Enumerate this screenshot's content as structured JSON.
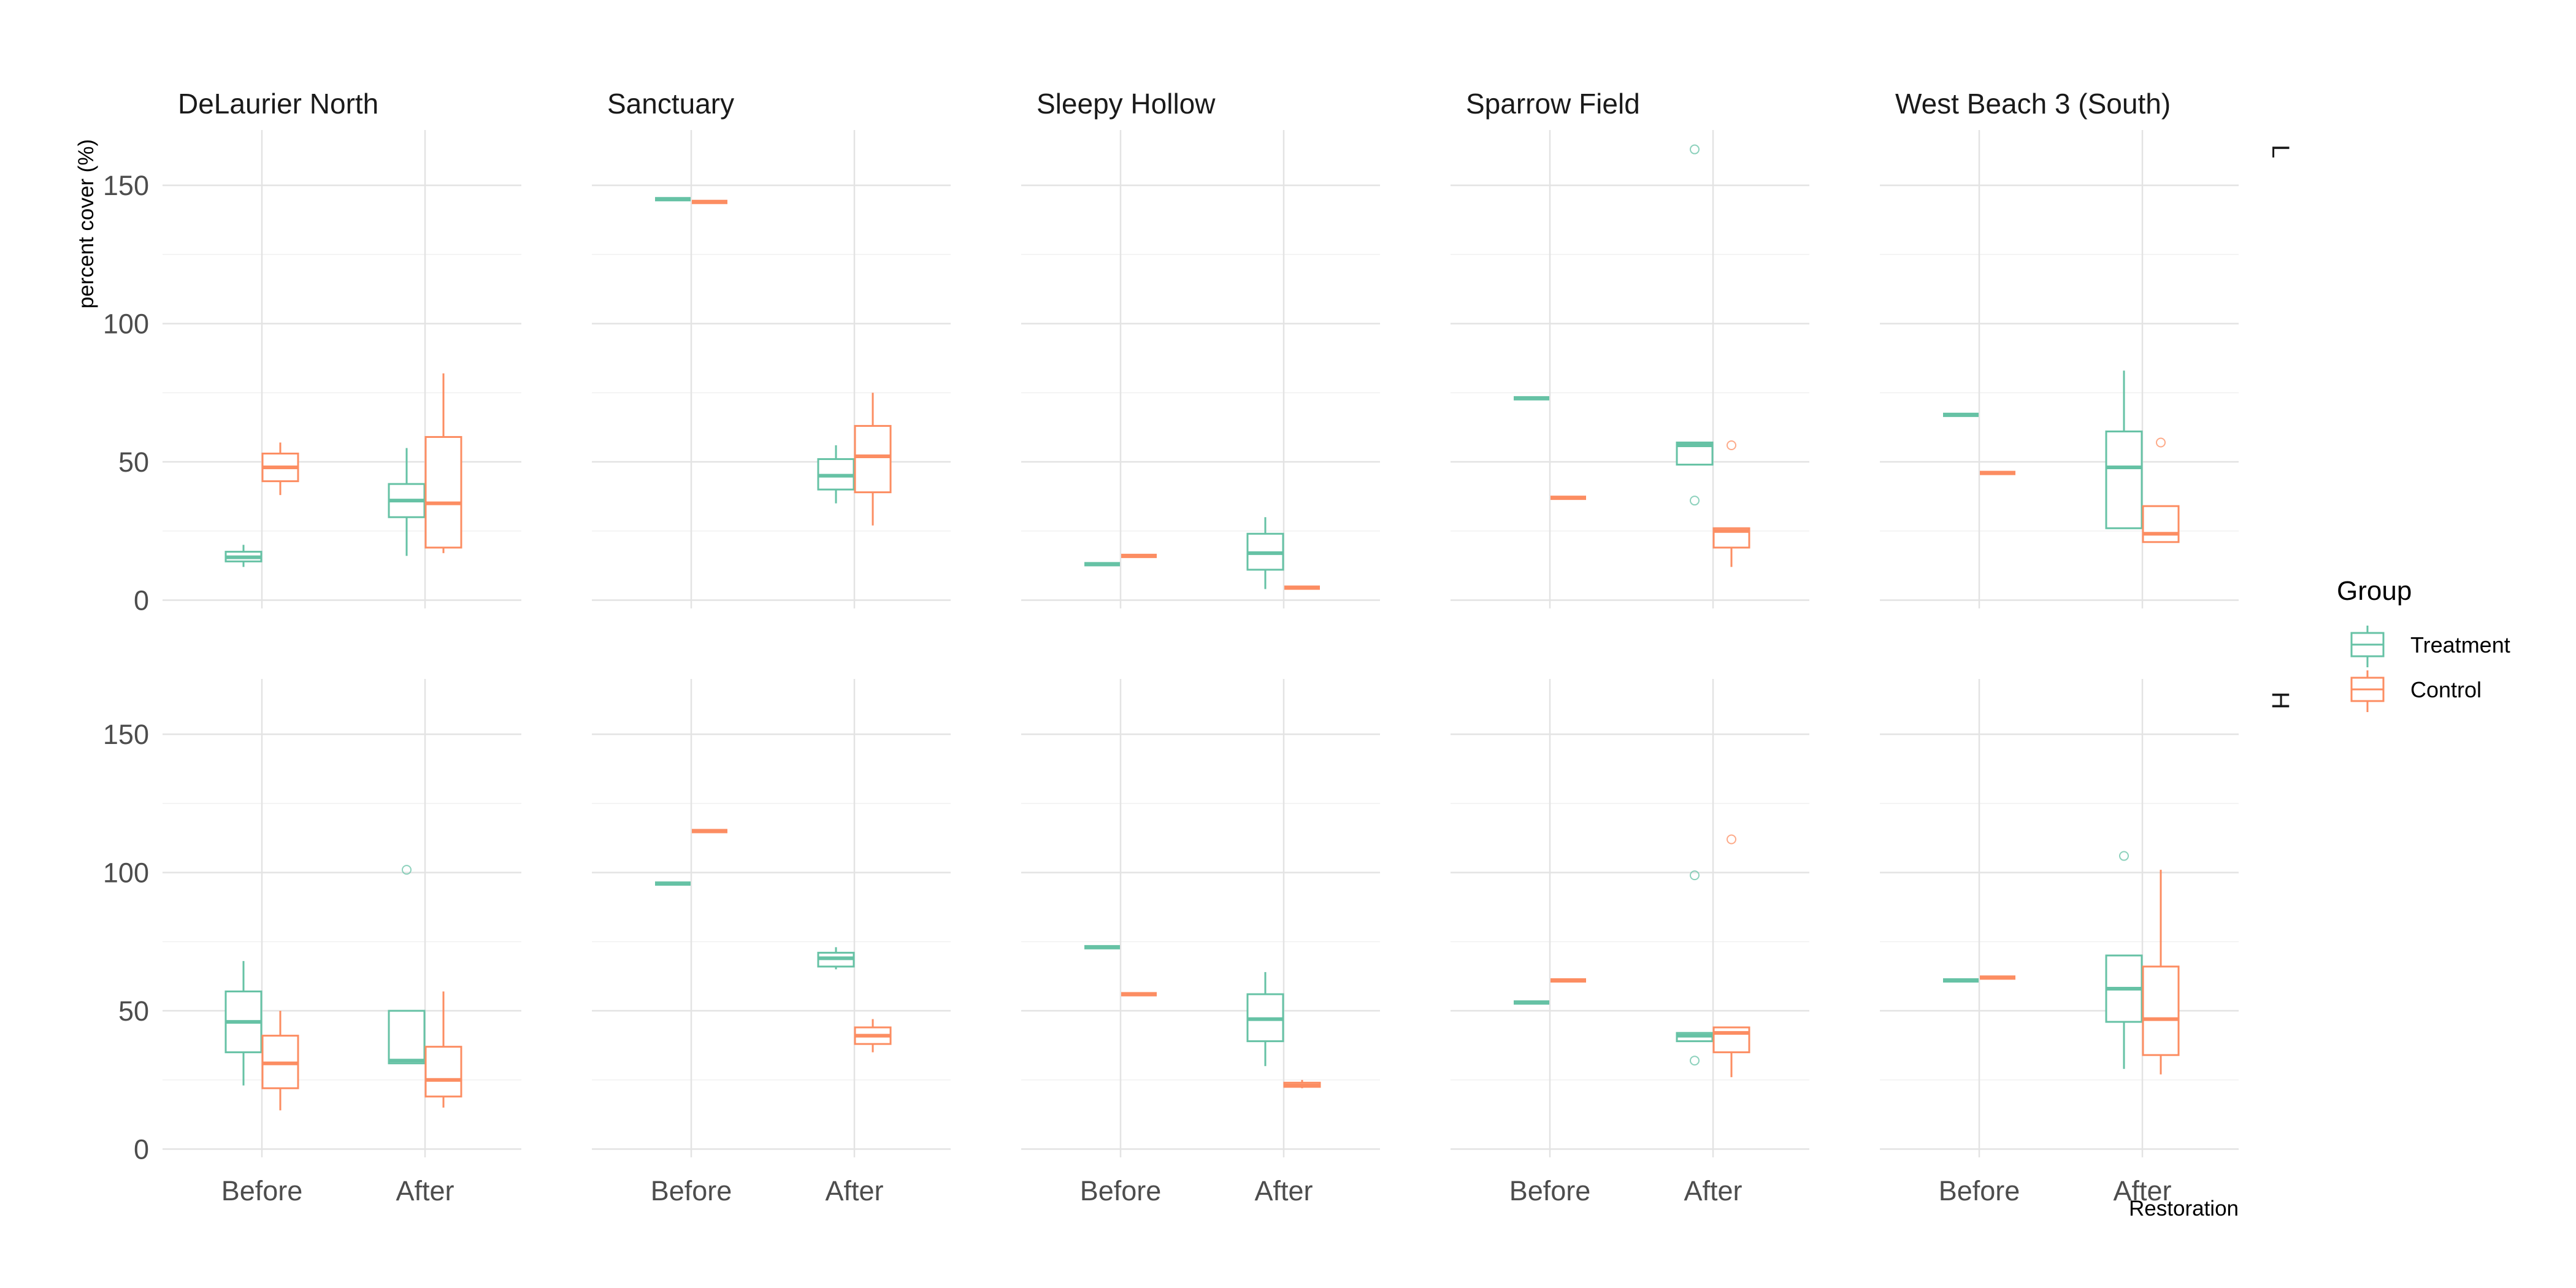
{
  "chart_data": {
    "type": "boxplot",
    "title": "",
    "xlabel": "Restoration",
    "ylabel": "percent cover (%)",
    "ylim": [
      -3,
      170
    ],
    "y_ticks": [
      0,
      50,
      100,
      150
    ],
    "grid": true,
    "legend": {
      "title": "Group",
      "placement": "right",
      "entries": [
        {
          "name": "Treatment",
          "color": "#66c2a5"
        },
        {
          "name": "Control",
          "color": "#fc8d62"
        }
      ]
    },
    "categories": [
      "Before",
      "After"
    ],
    "facet_columns": [
      "DeLaurier North",
      "Sanctuary",
      "Sleepy Hollow",
      "Sparrow Field",
      "West Beach 3 (South)"
    ],
    "facet_rows": [
      "L",
      "H"
    ],
    "panels": [
      {
        "column": "DeLaurier North",
        "row": "L",
        "boxes": [
          {
            "category": "Before",
            "group": "Treatment",
            "min": 12,
            "q1": 14,
            "median": 15.5,
            "q3": 17.5,
            "max": 20,
            "outliers": []
          },
          {
            "category": "Before",
            "group": "Control",
            "min": 38,
            "q1": 43,
            "median": 48,
            "q3": 53,
            "max": 57,
            "outliers": []
          },
          {
            "category": "After",
            "group": "Treatment",
            "min": 16,
            "q1": 30,
            "median": 36,
            "q3": 42,
            "max": 55,
            "outliers": []
          },
          {
            "category": "After",
            "group": "Control",
            "min": 17,
            "q1": 19,
            "median": 35,
            "q3": 59,
            "max": 82,
            "outliers": []
          }
        ]
      },
      {
        "column": "Sanctuary",
        "row": "L",
        "boxes": [
          {
            "category": "Before",
            "group": "Treatment",
            "min": 145,
            "q1": 145,
            "median": 145,
            "q3": 145,
            "max": 145,
            "outliers": []
          },
          {
            "category": "Before",
            "group": "Control",
            "min": 144,
            "q1": 144,
            "median": 144,
            "q3": 144,
            "max": 144,
            "outliers": []
          },
          {
            "category": "After",
            "group": "Treatment",
            "min": 35,
            "q1": 40,
            "median": 45,
            "q3": 51,
            "max": 56,
            "outliers": []
          },
          {
            "category": "After",
            "group": "Control",
            "min": 27,
            "q1": 39,
            "median": 52,
            "q3": 63,
            "max": 75,
            "outliers": []
          }
        ]
      },
      {
        "column": "Sleepy Hollow",
        "row": "L",
        "boxes": [
          {
            "category": "Before",
            "group": "Treatment",
            "min": 13,
            "q1": 13,
            "median": 13,
            "q3": 13,
            "max": 13,
            "outliers": []
          },
          {
            "category": "Before",
            "group": "Control",
            "min": 16,
            "q1": 16,
            "median": 16,
            "q3": 16,
            "max": 16,
            "outliers": []
          },
          {
            "category": "After",
            "group": "Treatment",
            "min": 4,
            "q1": 11,
            "median": 17,
            "q3": 24,
            "max": 30,
            "outliers": []
          },
          {
            "category": "After",
            "group": "Control",
            "min": 4.5,
            "q1": 4.5,
            "median": 4.5,
            "q3": 4.5,
            "max": 4.5,
            "outliers": []
          }
        ]
      },
      {
        "column": "Sparrow Field",
        "row": "L",
        "boxes": [
          {
            "category": "Before",
            "group": "Treatment",
            "min": 73,
            "q1": 73,
            "median": 73,
            "q3": 73,
            "max": 73,
            "outliers": []
          },
          {
            "category": "Before",
            "group": "Control",
            "min": 37,
            "q1": 37,
            "median": 37,
            "q3": 37,
            "max": 37,
            "outliers": []
          },
          {
            "category": "After",
            "group": "Treatment",
            "min": 49,
            "q1": 49,
            "median": 56,
            "q3": 57,
            "max": 57,
            "outliers": [
              163,
              36
            ]
          },
          {
            "category": "After",
            "group": "Control",
            "min": 12,
            "q1": 19,
            "median": 25,
            "q3": 26,
            "max": 26,
            "outliers": [
              56
            ]
          }
        ]
      },
      {
        "column": "West Beach 3 (South)",
        "row": "L",
        "boxes": [
          {
            "category": "Before",
            "group": "Treatment",
            "min": 67,
            "q1": 67,
            "median": 67,
            "q3": 67,
            "max": 67,
            "outliers": []
          },
          {
            "category": "Before",
            "group": "Control",
            "min": 46,
            "q1": 46,
            "median": 46,
            "q3": 46,
            "max": 46,
            "outliers": []
          },
          {
            "category": "After",
            "group": "Treatment",
            "min": 26,
            "q1": 26,
            "median": 48,
            "q3": 61,
            "max": 83,
            "outliers": []
          },
          {
            "category": "After",
            "group": "Control",
            "min": 21,
            "q1": 21,
            "median": 24,
            "q3": 34,
            "max": 34,
            "outliers": [
              57
            ]
          }
        ]
      },
      {
        "column": "DeLaurier North",
        "row": "H",
        "boxes": [
          {
            "category": "Before",
            "group": "Treatment",
            "min": 23,
            "q1": 35,
            "median": 46,
            "q3": 57,
            "max": 68,
            "outliers": []
          },
          {
            "category": "Before",
            "group": "Control",
            "min": 14,
            "q1": 22,
            "median": 31,
            "q3": 41,
            "max": 50,
            "outliers": []
          },
          {
            "category": "After",
            "group": "Treatment",
            "min": 31,
            "q1": 31,
            "median": 32,
            "q3": 50,
            "max": 50,
            "outliers": [
              101
            ]
          },
          {
            "category": "After",
            "group": "Control",
            "min": 15,
            "q1": 19,
            "median": 25,
            "q3": 37,
            "max": 57,
            "outliers": []
          }
        ]
      },
      {
        "column": "Sanctuary",
        "row": "H",
        "boxes": [
          {
            "category": "Before",
            "group": "Treatment",
            "min": 96,
            "q1": 96,
            "median": 96,
            "q3": 96,
            "max": 96,
            "outliers": []
          },
          {
            "category": "Before",
            "group": "Control",
            "min": 115,
            "q1": 115,
            "median": 115,
            "q3": 115,
            "max": 115,
            "outliers": []
          },
          {
            "category": "After",
            "group": "Treatment",
            "min": 65,
            "q1": 66,
            "median": 69,
            "q3": 71,
            "max": 73,
            "outliers": []
          },
          {
            "category": "After",
            "group": "Control",
            "min": 35,
            "q1": 38,
            "median": 41,
            "q3": 44,
            "max": 47,
            "outliers": []
          }
        ]
      },
      {
        "column": "Sleepy Hollow",
        "row": "H",
        "boxes": [
          {
            "category": "Before",
            "group": "Treatment",
            "min": 73,
            "q1": 73,
            "median": 73,
            "q3": 73,
            "max": 73,
            "outliers": []
          },
          {
            "category": "Before",
            "group": "Control",
            "min": 56,
            "q1": 56,
            "median": 56,
            "q3": 56,
            "max": 56,
            "outliers": []
          },
          {
            "category": "After",
            "group": "Treatment",
            "min": 30,
            "q1": 39,
            "median": 47,
            "q3": 56,
            "max": 64,
            "outliers": []
          },
          {
            "category": "After",
            "group": "Control",
            "min": 22,
            "q1": 22.5,
            "median": 23,
            "q3": 24,
            "max": 25,
            "outliers": []
          }
        ]
      },
      {
        "column": "Sparrow Field",
        "row": "H",
        "boxes": [
          {
            "category": "Before",
            "group": "Treatment",
            "min": 53,
            "q1": 53,
            "median": 53,
            "q3": 53,
            "max": 53,
            "outliers": []
          },
          {
            "category": "Before",
            "group": "Control",
            "min": 61,
            "q1": 61,
            "median": 61,
            "q3": 61,
            "max": 61,
            "outliers": []
          },
          {
            "category": "After",
            "group": "Treatment",
            "min": 39,
            "q1": 39,
            "median": 41,
            "q3": 42,
            "max": 42,
            "outliers": [
              99,
              32
            ]
          },
          {
            "category": "After",
            "group": "Control",
            "min": 26,
            "q1": 35,
            "median": 42,
            "q3": 44,
            "max": 44,
            "outliers": [
              112
            ]
          }
        ]
      },
      {
        "column": "West Beach 3 (South)",
        "row": "H",
        "boxes": [
          {
            "category": "Before",
            "group": "Treatment",
            "min": 61,
            "q1": 61,
            "median": 61,
            "q3": 61,
            "max": 61,
            "outliers": []
          },
          {
            "category": "Before",
            "group": "Control",
            "min": 62,
            "q1": 62,
            "median": 62,
            "q3": 62,
            "max": 62,
            "outliers": []
          },
          {
            "category": "After",
            "group": "Treatment",
            "min": 29,
            "q1": 46,
            "median": 58,
            "q3": 70,
            "max": 70,
            "outliers": [
              106
            ]
          },
          {
            "category": "After",
            "group": "Control",
            "min": 27,
            "q1": 34,
            "median": 47,
            "q3": 66,
            "max": 101,
            "outliers": []
          }
        ]
      }
    ]
  }
}
